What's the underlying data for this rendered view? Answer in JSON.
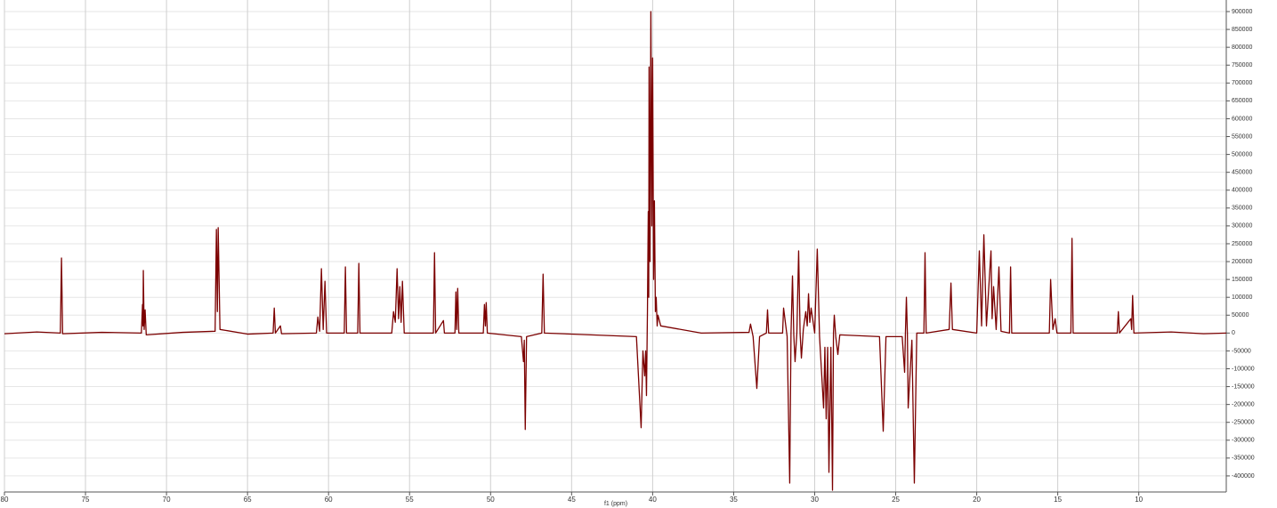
{
  "chart_data": {
    "type": "line",
    "x_label": "f1 (ppm)",
    "color": "#7b0000",
    "grid": true,
    "xlim": [
      80,
      4.6
    ],
    "xticks": [
      80,
      75,
      70,
      65,
      60,
      55,
      50,
      45,
      40,
      35,
      30,
      25,
      20,
      15,
      10
    ],
    "ylim": [
      -445000,
      900000
    ],
    "yticks": [
      -400000,
      -350000,
      -300000,
      -250000,
      -200000,
      -150000,
      -100000,
      -50000,
      0,
      50000,
      100000,
      150000,
      200000,
      250000,
      300000,
      350000,
      400000,
      450000,
      500000,
      550000,
      600000,
      650000,
      700000,
      750000,
      800000,
      850000,
      900000
    ],
    "x": [
      80,
      78,
      76.55,
      76.48,
      76.41,
      74,
      71.55,
      71.48,
      71.45,
      71.43,
      71.38,
      71.32,
      71.25,
      69,
      67.0,
      66.92,
      66.86,
      66.81,
      66.7,
      65,
      63.42,
      63.35,
      63.28,
      62.97,
      62.9,
      60.75,
      60.66,
      60.55,
      60.44,
      60.33,
      60.22,
      60.12,
      59.03,
      58.96,
      58.89,
      58.2,
      58.13,
      58.06,
      56.1,
      55.99,
      55.88,
      55.77,
      55.68,
      55.6,
      55.52,
      55.44,
      55.33,
      53.53,
      53.46,
      53.39,
      52.91,
      52.85,
      52.2,
      52.14,
      52.09,
      52.03,
      51.96,
      50.45,
      50.38,
      50.32,
      50.27,
      50.2,
      48.1,
      47.97,
      47.92,
      47.86,
      47.78,
      46.84,
      46.76,
      46.68,
      41,
      40.71,
      40.6,
      40.49,
      40.43,
      40.38,
      40.32,
      40.27,
      40.24,
      40.22,
      40.16,
      40.11,
      40.05,
      40.0,
      39.94,
      39.89,
      39.83,
      39.78,
      39.72,
      39.67,
      39.5,
      37,
      34.05,
      33.96,
      33.8,
      33.57,
      33.4,
      32.98,
      32.91,
      32.84,
      31.98,
      31.92,
      31.7,
      31.54,
      31.46,
      31.37,
      31.29,
      31.21,
      31.1,
      30.99,
      30.9,
      30.82,
      30.7,
      30.55,
      30.46,
      30.38,
      30.3,
      30.22,
      30.0,
      29.84,
      29.7,
      29.45,
      29.37,
      29.29,
      29.2,
      29.12,
      29.0,
      28.9,
      28.84,
      28.79,
      28.7,
      28.57,
      28.45,
      26,
      25.77,
      25.6,
      24.6,
      24.45,
      24.4,
      24.34,
      24.28,
      24.23,
      24.0,
      23.85,
      23.7,
      23.26,
      23.19,
      23.12,
      21.7,
      21.59,
      21.5,
      20.0,
      19.84,
      19.7,
      19.56,
      19.4,
      19.12,
      19.05,
      18.96,
      18.8,
      18.63,
      18.5,
      17.98,
      17.91,
      17.84,
      15.52,
      15.44,
      15.3,
      15.16,
      15.05,
      14.19,
      14.12,
      14.05,
      11.33,
      11.26,
      11.19,
      10.49,
      10.44,
      10.38,
      10.3,
      8,
      6,
      4.6
    ],
    "values": [
      -2000,
      3000,
      0,
      210000,
      -2000,
      2000,
      0,
      80000,
      20000,
      175000,
      10000,
      65000,
      -5000,
      2000,
      5000,
      290000,
      60000,
      295000,
      10000,
      -3000,
      0,
      70000,
      0,
      20000,
      -2000,
      0,
      45000,
      5000,
      180000,
      10000,
      145000,
      0,
      0,
      185000,
      0,
      0,
      195000,
      0,
      0,
      60000,
      30000,
      180000,
      40000,
      130000,
      30000,
      145000,
      0,
      0,
      225000,
      0,
      35000,
      0,
      0,
      115000,
      10000,
      125000,
      0,
      0,
      80000,
      20000,
      85000,
      0,
      -10000,
      -80000,
      -20000,
      -270000,
      -10000,
      0,
      165000,
      0,
      -10000,
      -265000,
      -50000,
      -120000,
      -50000,
      -175000,
      60000,
      340000,
      100000,
      745000,
      200000,
      900000,
      300000,
      770000,
      150000,
      370000,
      60000,
      100000,
      20000,
      50000,
      20000,
      0,
      2000,
      25000,
      -10000,
      -155000,
      -10000,
      0,
      65000,
      0,
      0,
      70000,
      -10000,
      -420000,
      0,
      160000,
      -5000,
      -80000,
      0,
      230000,
      0,
      -70000,
      10000,
      60000,
      20000,
      110000,
      30000,
      70000,
      0,
      235000,
      -10000,
      -210000,
      -40000,
      -240000,
      -40000,
      -390000,
      -40000,
      -440000,
      0,
      50000,
      -10000,
      -60000,
      -5000,
      -10000,
      -275000,
      -10000,
      -10000,
      -110000,
      0,
      100000,
      0,
      -210000,
      -20000,
      -420000,
      0,
      0,
      225000,
      0,
      10000,
      140000,
      10000,
      0,
      230000,
      20000,
      275000,
      20000,
      230000,
      40000,
      130000,
      10000,
      185000,
      5000,
      0,
      185000,
      0,
      0,
      150000,
      10000,
      40000,
      0,
      0,
      265000,
      0,
      0,
      60000,
      0,
      40000,
      10000,
      105000,
      0,
      3000,
      -2000,
      0
    ]
  }
}
